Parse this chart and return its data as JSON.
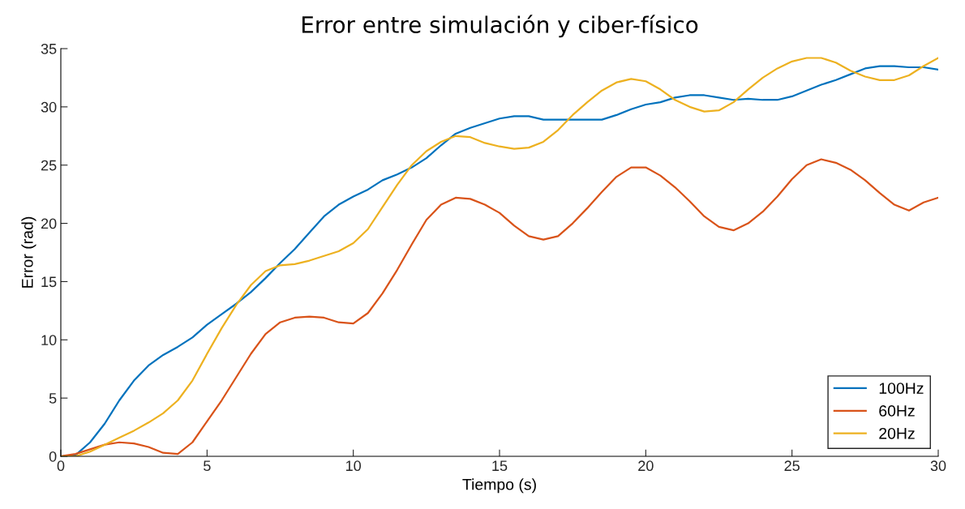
{
  "chart_data": {
    "type": "line",
    "title": "Error entre simulación y ciber-físico",
    "xlabel": "Tiempo (s)",
    "ylabel": "Error (rad)",
    "x": [
      0,
      0.5,
      1,
      1.5,
      2,
      2.5,
      3,
      3.5,
      4,
      4.5,
      5,
      5.5,
      6,
      6.5,
      7,
      7.5,
      8,
      8.5,
      9,
      9.5,
      10,
      10.5,
      11,
      11.5,
      12,
      12.5,
      13,
      13.5,
      14,
      14.5,
      15,
      15.5,
      16,
      16.5,
      17,
      17.5,
      18,
      18.5,
      19,
      19.5,
      20,
      20.5,
      21,
      21.5,
      22,
      22.5,
      23,
      23.5,
      24,
      24.5,
      25,
      25.5,
      26,
      26.5,
      27,
      27.5,
      28,
      28.5,
      29,
      29.5,
      30
    ],
    "series": [
      {
        "name": "100Hz",
        "color": "#0072bd",
        "values": [
          0,
          0.1,
          1.2,
          2.8,
          4.8,
          6.5,
          7.8,
          8.7,
          9.4,
          10.2,
          11.3,
          12.2,
          13.1,
          14.1,
          15.3,
          16.6,
          17.8,
          19.2,
          20.6,
          21.6,
          22.3,
          22.9,
          23.7,
          24.2,
          24.8,
          25.6,
          26.7,
          27.7,
          28.2,
          28.6,
          29.0,
          29.2,
          29.2,
          28.9,
          28.9,
          28.9,
          28.9,
          28.9,
          29.3,
          29.8,
          30.2,
          30.4,
          30.8,
          31.0,
          31.0,
          30.8,
          30.6,
          30.7,
          30.6,
          30.6,
          30.9,
          31.4,
          31.9,
          32.3,
          32.8,
          33.3,
          33.5,
          33.5,
          33.4,
          33.4,
          33.2
        ]
      },
      {
        "name": "60Hz",
        "color": "#d95319",
        "values": [
          0,
          0.2,
          0.6,
          1.0,
          1.2,
          1.1,
          0.8,
          0.3,
          0.2,
          1.2,
          3.0,
          4.8,
          6.8,
          8.8,
          10.5,
          11.5,
          11.9,
          12.0,
          11.9,
          11.5,
          11.4,
          12.3,
          14.0,
          16.0,
          18.2,
          20.3,
          21.6,
          22.2,
          22.1,
          21.6,
          20.9,
          19.8,
          18.9,
          18.6,
          18.9,
          20.0,
          21.3,
          22.7,
          24.0,
          24.8,
          24.8,
          24.1,
          23.1,
          21.9,
          20.6,
          19.7,
          19.4,
          20.0,
          21.0,
          22.3,
          23.8,
          25.0,
          25.5,
          25.2,
          24.6,
          23.7,
          22.6,
          21.6,
          21.1,
          21.8,
          22.2
        ]
      },
      {
        "name": "20Hz",
        "color": "#edb120",
        "values": [
          0,
          0,
          0.4,
          1.0,
          1.6,
          2.2,
          2.9,
          3.7,
          4.8,
          6.5,
          8.8,
          11.0,
          13.0,
          14.7,
          15.9,
          16.4,
          16.5,
          16.8,
          17.2,
          17.6,
          18.3,
          19.5,
          21.4,
          23.3,
          25.0,
          26.2,
          27.0,
          27.5,
          27.4,
          26.9,
          26.6,
          26.4,
          26.5,
          27.0,
          28.0,
          29.3,
          30.4,
          31.4,
          32.1,
          32.4,
          32.2,
          31.5,
          30.6,
          30.0,
          29.6,
          29.7,
          30.4,
          31.5,
          32.5,
          33.3,
          33.9,
          34.2,
          34.2,
          33.8,
          33.1,
          32.6,
          32.3,
          32.3,
          32.7,
          33.5,
          34.2
        ]
      }
    ],
    "xlim": [
      0,
      30
    ],
    "xticks": [
      0,
      5,
      10,
      15,
      20,
      25,
      30
    ],
    "ylim": [
      0,
      35
    ],
    "yticks": [
      0,
      5,
      10,
      15,
      20,
      25,
      30,
      35
    ],
    "grid": false,
    "legend": "bottom right",
    "line_style": "solid",
    "marker": "none"
  }
}
